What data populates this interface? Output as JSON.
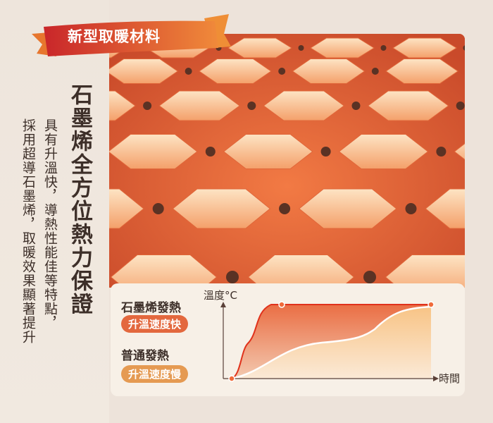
{
  "banner": {
    "text": "新型取暖材料"
  },
  "heading": "石墨烯全方位熱力保證",
  "body": [
    "具有升溫快，導熱性能佳等特點，",
    "採用超導石墨烯，取暖效果顯著提升"
  ],
  "comparison": {
    "graphene": {
      "label": "石墨烯發熱",
      "badge": "升溫速度快",
      "color": "#e3683e"
    },
    "normal": {
      "label": "普通發熱",
      "badge": "升溫速度慢",
      "color": "#e59a52"
    },
    "y_axis": "溫度°C",
    "x_axis": "時間"
  },
  "colors": {
    "accent": "#e0502a",
    "background": "#ede3da"
  }
}
